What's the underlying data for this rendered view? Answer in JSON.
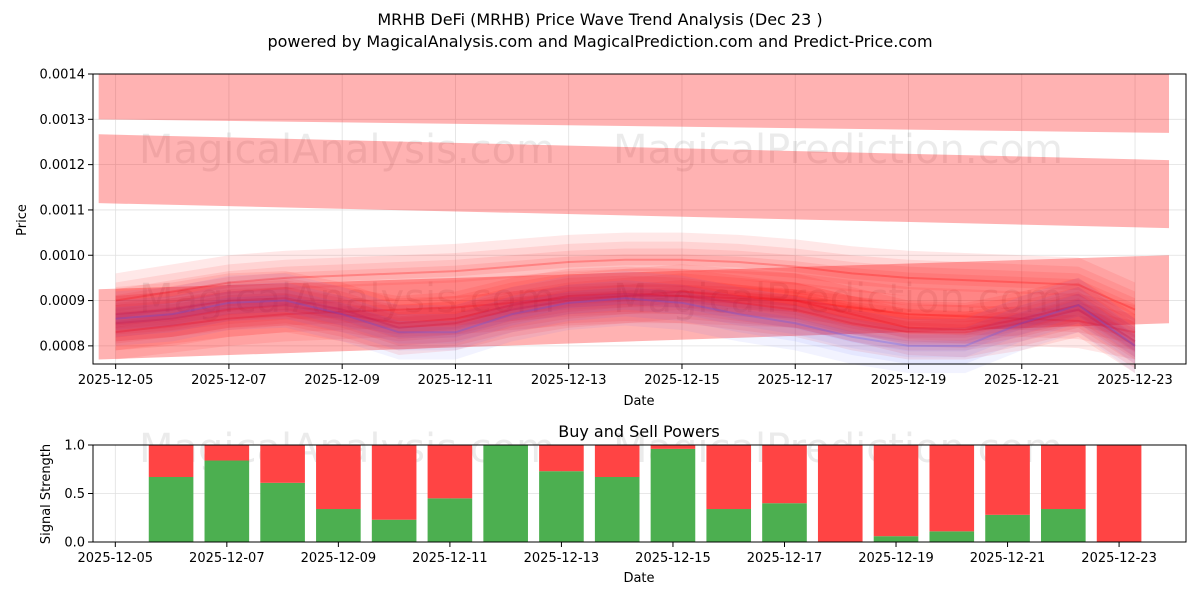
{
  "title_line1": "MRHB DeFi (MRHB) Price Wave Trend Analysis (Dec 23 )",
  "title_line2": "powered by MagicalAnalysis.com and MagicalPrediction.com and Predict-Price.com",
  "watermarks": [
    "MagicalAnalysis.com",
    "MagicalPrediction.com"
  ],
  "colors": {
    "band_red": "#ff0000",
    "band_blue": "#4455ff",
    "buy": "#4caf50",
    "sell": "#ff4444",
    "grid": "#e0e0e0"
  },
  "chart_data": [
    {
      "type": "area",
      "title": "",
      "xlabel": "Date",
      "ylabel": "Price",
      "xlim": [
        "2025-12-04.6",
        "2025-12-23.9"
      ],
      "ylim": [
        0.00076,
        0.0014
      ],
      "grid": true,
      "x_ticks": [
        "2025-12-05",
        "2025-12-07",
        "2025-12-09",
        "2025-12-11",
        "2025-12-13",
        "2025-12-15",
        "2025-12-17",
        "2025-12-19",
        "2025-12-21",
        "2025-12-23"
      ],
      "x_tick_days": [
        5,
        7,
        9,
        11,
        13,
        15,
        17,
        19,
        21,
        23
      ],
      "y_ticks": [
        "0.0008",
        "0.0009",
        "0.0010",
        "0.0011",
        "0.0012",
        "0.0013",
        "0.0014"
      ],
      "y_tick_values": [
        0.0008,
        0.0009,
        0.001,
        0.0011,
        0.0012,
        0.0013,
        0.0014
      ],
      "bands": [
        {
          "name": "upper-wave-band",
          "color": "red",
          "opacity": 0.3,
          "x": [
            4.7,
            23.6
          ],
          "lower": [
            0.0013,
            0.00127
          ],
          "upper": [
            0.0014,
            0.0014
          ],
          "mid_dip": [
            11,
            1e-05
          ]
        },
        {
          "name": "middle-wave-band",
          "color": "red",
          "opacity": 0.3,
          "x": [
            4.7,
            23.6
          ],
          "lower": [
            0.001115,
            0.00106
          ],
          "upper": [
            0.001267,
            0.00121
          ]
        },
        {
          "name": "lower-wave-band",
          "color": "red",
          "opacity": 0.3,
          "x": [
            4.7,
            23.6
          ],
          "lower": [
            0.00077,
            0.00085
          ],
          "upper": [
            0.000925,
            0.001
          ]
        }
      ],
      "wave_days": [
        5,
        6,
        7,
        8,
        9,
        10,
        11,
        12,
        13,
        14,
        15,
        16,
        17,
        18,
        19,
        20,
        21,
        22,
        23
      ],
      "wave_series": [
        {
          "name": "wave-1",
          "color": "red",
          "values": [
            0.00087,
            0.00088,
            0.0009,
            0.000905,
            0.00088,
            0.00084,
            0.00085,
            0.00088,
            0.0009,
            0.00091,
            0.00092,
            0.00091,
            0.0009,
            0.00087,
            0.00084,
            0.000835,
            0.00086,
            0.00089,
            0.00081
          ]
        },
        {
          "name": "wave-2",
          "color": "red",
          "values": [
            0.00085,
            0.00086,
            0.00088,
            0.00089,
            0.00087,
            0.00085,
            0.00086,
            0.00089,
            0.00091,
            0.000915,
            0.00091,
            0.000895,
            0.00088,
            0.00085,
            0.00083,
            0.00083,
            0.00085,
            0.00088,
            0.0008
          ]
        },
        {
          "name": "wave-3",
          "color": "red",
          "values": [
            0.0009,
            0.00092,
            0.00094,
            0.00095,
            0.000955,
            0.00096,
            0.000965,
            0.000975,
            0.000985,
            0.00099,
            0.00099,
            0.000985,
            0.000975,
            0.00096,
            0.00095,
            0.000945,
            0.00094,
            0.000935,
            0.00088
          ]
        },
        {
          "name": "wave-4",
          "color": "red",
          "values": [
            0.00083,
            0.000845,
            0.00086,
            0.00087,
            0.000875,
            0.00088,
            0.000885,
            0.000895,
            0.000905,
            0.00091,
            0.00091,
            0.000905,
            0.0009,
            0.000885,
            0.00087,
            0.000865,
            0.00086,
            0.000855,
            0.00083
          ]
        },
        {
          "name": "wave-5",
          "color": "blue",
          "values": [
            0.00086,
            0.00087,
            0.000895,
            0.0009,
            0.00087,
            0.00083,
            0.00083,
            0.00087,
            0.000895,
            0.000905,
            0.000895,
            0.00087,
            0.00085,
            0.00082,
            0.0008,
            0.0008,
            0.00085,
            0.00089,
            0.0008
          ]
        }
      ]
    },
    {
      "type": "bar",
      "title": "Buy and Sell Powers",
      "xlabel": "Date",
      "ylabel": "Signal Strength",
      "ylim": [
        0,
        1
      ],
      "grid": true,
      "x_ticks": [
        "2025-12-05",
        "2025-12-07",
        "2025-12-09",
        "2025-12-11",
        "2025-12-13",
        "2025-12-15",
        "2025-12-17",
        "2025-12-19",
        "2025-12-21",
        "2025-12-23"
      ],
      "x_tick_days": [
        5,
        7,
        9,
        11,
        13,
        15,
        17,
        19,
        21,
        23
      ],
      "y_ticks": [
        "0.0",
        "0.5",
        "1.0"
      ],
      "y_tick_values": [
        0,
        0.5,
        1
      ],
      "days": [
        6,
        7,
        8,
        9,
        10,
        11,
        12,
        13,
        14,
        15,
        16,
        17,
        18,
        19,
        20,
        21,
        22,
        23
      ],
      "series": [
        {
          "name": "Buy",
          "values": [
            0.67,
            0.84,
            0.61,
            0.34,
            0.23,
            0.45,
            1.0,
            0.73,
            0.67,
            0.96,
            0.34,
            0.4,
            0.0,
            0.06,
            0.11,
            0.28,
            0.34,
            0.0
          ]
        },
        {
          "name": "Sell",
          "values": [
            0.33,
            0.16,
            0.39,
            0.66,
            0.77,
            0.55,
            0.0,
            0.27,
            0.33,
            0.04,
            0.66,
            0.6,
            1.0,
            0.94,
            0.89,
            0.72,
            0.66,
            1.0
          ]
        }
      ]
    }
  ]
}
